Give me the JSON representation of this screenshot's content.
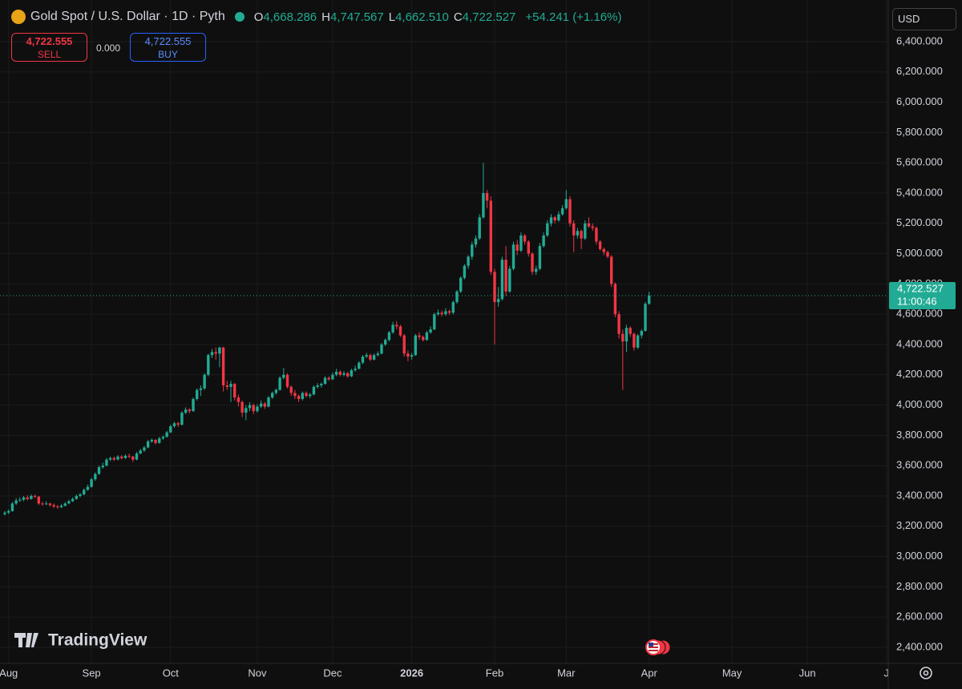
{
  "chart_data": {
    "type": "candlestick",
    "title": "Gold Spot / U.S. Dollar · 1D · Pyth",
    "info": [
      {
        "label": "O",
        "value": "4,668.286"
      },
      {
        "label": "H",
        "value": "4,747.567"
      },
      {
        "label": "L",
        "value": "4,662.510"
      },
      {
        "label": "C",
        "value": "4,722.527"
      }
    ],
    "change": "+54.241 (+1.16%)",
    "trade": {
      "sell_price": "4,722.555",
      "sell": "SELL",
      "spread": "0.000",
      "buy_price": "4,722.555",
      "buy": "BUY"
    },
    "currency": "USD",
    "brand": "TradingView",
    "up_color": "#22ab94",
    "down_color": "#f23645",
    "grid": true,
    "price_line": {
      "value": 4722.527,
      "label": "4,722.527",
      "countdown": "11:00:46"
    },
    "xlim": [
      -1.28,
      234.47
    ],
    "xticks": [
      {
        "value": 1,
        "label": "Aug"
      },
      {
        "value": 23,
        "label": "Sep"
      },
      {
        "value": 44,
        "label": "Oct"
      },
      {
        "value": 67,
        "label": "Nov"
      },
      {
        "value": 87,
        "label": "Dec"
      },
      {
        "value": 108,
        "label": "2026"
      },
      {
        "value": 130,
        "label": "Feb"
      },
      {
        "value": 149,
        "label": "Mar"
      },
      {
        "value": 171,
        "label": "Apr"
      },
      {
        "value": 193,
        "label": "May"
      },
      {
        "value": 213,
        "label": "Jun"
      },
      {
        "value": 234,
        "label": "J"
      }
    ],
    "ylim": [
      2294.2,
      6675.1
    ],
    "yticks": [
      {
        "value": 2400,
        "label": "2,400.000"
      },
      {
        "value": 2600,
        "label": "2,600.000"
      },
      {
        "value": 2800,
        "label": "2,800.000"
      },
      {
        "value": 3000,
        "label": "3,000.000"
      },
      {
        "value": 3200,
        "label": "3,200.000"
      },
      {
        "value": 3400,
        "label": "3,400.000"
      },
      {
        "value": 3600,
        "label": "3,600.000"
      },
      {
        "value": 3800,
        "label": "3,800.000"
      },
      {
        "value": 4000,
        "label": "4,000.000"
      },
      {
        "value": 4200,
        "label": "4,200.000"
      },
      {
        "value": 4400,
        "label": "4,400.000"
      },
      {
        "value": 4600,
        "label": "4,600.000"
      },
      {
        "value": 4800,
        "label": "4,800.000"
      },
      {
        "value": 5000,
        "label": "5,000.000"
      },
      {
        "value": 5200,
        "label": "5,200.000"
      },
      {
        "value": 5400,
        "label": "5,400.000"
      },
      {
        "value": 5600,
        "label": "5,600.000"
      },
      {
        "value": 5800,
        "label": "5,800.000"
      },
      {
        "value": 6000,
        "label": "6,000.000"
      },
      {
        "value": 6200,
        "label": "6,200.000"
      },
      {
        "value": 6400,
        "label": "6,400.000"
      }
    ],
    "ohlc": [
      [
        3280,
        3300,
        3270,
        3290
      ],
      [
        3290,
        3310,
        3280,
        3300
      ],
      [
        3300,
        3360,
        3295,
        3350
      ],
      [
        3350,
        3385,
        3340,
        3370
      ],
      [
        3370,
        3390,
        3360,
        3375
      ],
      [
        3375,
        3400,
        3365,
        3390
      ],
      [
        3390,
        3405,
        3370,
        3380
      ],
      [
        3380,
        3410,
        3375,
        3400
      ],
      [
        3400,
        3410,
        3385,
        3395
      ],
      [
        3395,
        3400,
        3340,
        3350
      ],
      [
        3350,
        3360,
        3335,
        3345
      ],
      [
        3345,
        3365,
        3340,
        3350
      ],
      [
        3350,
        3355,
        3330,
        3340
      ],
      [
        3340,
        3350,
        3320,
        3330
      ],
      [
        3330,
        3340,
        3315,
        3325
      ],
      [
        3325,
        3345,
        3320,
        3335
      ],
      [
        3335,
        3360,
        3330,
        3350
      ],
      [
        3350,
        3375,
        3345,
        3365
      ],
      [
        3365,
        3390,
        3360,
        3380
      ],
      [
        3380,
        3410,
        3375,
        3400
      ],
      [
        3400,
        3420,
        3390,
        3410
      ],
      [
        3410,
        3450,
        3405,
        3440
      ],
      [
        3440,
        3475,
        3435,
        3460
      ],
      [
        3460,
        3520,
        3455,
        3510
      ],
      [
        3510,
        3555,
        3500,
        3545
      ],
      [
        3545,
        3600,
        3540,
        3590
      ],
      [
        3590,
        3620,
        3580,
        3600
      ],
      [
        3600,
        3650,
        3595,
        3640
      ],
      [
        3640,
        3660,
        3630,
        3650
      ],
      [
        3650,
        3660,
        3630,
        3640
      ],
      [
        3640,
        3670,
        3635,
        3660
      ],
      [
        3660,
        3670,
        3640,
        3650
      ],
      [
        3650,
        3675,
        3645,
        3665
      ],
      [
        3665,
        3680,
        3650,
        3660
      ],
      [
        3660,
        3665,
        3625,
        3640
      ],
      [
        3640,
        3690,
        3635,
        3680
      ],
      [
        3680,
        3710,
        3675,
        3700
      ],
      [
        3700,
        3730,
        3690,
        3720
      ],
      [
        3720,
        3770,
        3715,
        3760
      ],
      [
        3760,
        3780,
        3750,
        3770
      ],
      [
        3770,
        3775,
        3740,
        3750
      ],
      [
        3750,
        3790,
        3745,
        3780
      ],
      [
        3780,
        3800,
        3770,
        3790
      ],
      [
        3790,
        3830,
        3785,
        3820
      ],
      [
        3820,
        3870,
        3815,
        3860
      ],
      [
        3860,
        3890,
        3850,
        3880
      ],
      [
        3880,
        3890,
        3855,
        3870
      ],
      [
        3870,
        3960,
        3865,
        3950
      ],
      [
        3950,
        3985,
        3940,
        3970
      ],
      [
        3970,
        3980,
        3945,
        3960
      ],
      [
        3960,
        4050,
        3955,
        4040
      ],
      [
        4040,
        4110,
        4030,
        4100
      ],
      [
        4100,
        4130,
        4060,
        4110
      ],
      [
        4110,
        4210,
        4100,
        4200
      ],
      [
        4200,
        4340,
        4190,
        4330
      ],
      [
        4330,
        4370,
        4310,
        4350
      ],
      [
        4350,
        4380,
        4300,
        4340
      ],
      [
        4340,
        4385,
        4250,
        4380
      ],
      [
        4380,
        4385,
        4090,
        4130
      ],
      [
        4130,
        4160,
        4100,
        4120
      ],
      [
        4120,
        4160,
        4020,
        4140
      ],
      [
        4140,
        4145,
        4030,
        4050
      ],
      [
        4050,
        4070,
        3990,
        4020
      ],
      [
        4020,
        4030,
        3920,
        3950
      ],
      [
        3950,
        4000,
        3900,
        3980
      ],
      [
        3980,
        4020,
        3960,
        4000
      ],
      [
        4000,
        4010,
        3940,
        3960
      ],
      [
        3960,
        4005,
        3950,
        3990
      ],
      [
        3990,
        4030,
        3980,
        4010
      ],
      [
        4010,
        4020,
        3975,
        3990
      ],
      [
        3990,
        4060,
        3985,
        4050
      ],
      [
        4050,
        4090,
        4040,
        4080
      ],
      [
        4080,
        4110,
        4070,
        4100
      ],
      [
        4100,
        4190,
        4095,
        4180
      ],
      [
        4180,
        4245,
        4170,
        4200
      ],
      [
        4200,
        4210,
        4110,
        4120
      ],
      [
        4120,
        4130,
        4060,
        4080
      ],
      [
        4080,
        4100,
        4040,
        4060
      ],
      [
        4060,
        4070,
        4020,
        4040
      ],
      [
        4040,
        4090,
        4030,
        4080
      ],
      [
        4080,
        4090,
        4050,
        4060
      ],
      [
        4060,
        4080,
        4045,
        4070
      ],
      [
        4070,
        4130,
        4065,
        4120
      ],
      [
        4120,
        4145,
        4110,
        4130
      ],
      [
        4130,
        4150,
        4115,
        4140
      ],
      [
        4140,
        4190,
        4135,
        4180
      ],
      [
        4180,
        4190,
        4160,
        4170
      ],
      [
        4170,
        4215,
        4165,
        4200
      ],
      [
        4200,
        4240,
        4190,
        4220
      ],
      [
        4220,
        4230,
        4190,
        4200
      ],
      [
        4200,
        4225,
        4190,
        4210
      ],
      [
        4210,
        4220,
        4180,
        4190
      ],
      [
        4190,
        4240,
        4185,
        4230
      ],
      [
        4230,
        4260,
        4220,
        4240
      ],
      [
        4240,
        4290,
        4235,
        4280
      ],
      [
        4280,
        4330,
        4270,
        4320
      ],
      [
        4320,
        4345,
        4310,
        4330
      ],
      [
        4330,
        4340,
        4290,
        4300
      ],
      [
        4300,
        4340,
        4295,
        4330
      ],
      [
        4330,
        4355,
        4320,
        4340
      ],
      [
        4340,
        4410,
        4335,
        4400
      ],
      [
        4400,
        4440,
        4390,
        4430
      ],
      [
        4430,
        4490,
        4420,
        4480
      ],
      [
        4480,
        4550,
        4470,
        4530
      ],
      [
        4530,
        4555,
        4500,
        4520
      ],
      [
        4520,
        4530,
        4450,
        4460
      ],
      [
        4460,
        4470,
        4320,
        4340
      ],
      [
        4340,
        4360,
        4290,
        4320
      ],
      [
        4320,
        4345,
        4300,
        4330
      ],
      [
        4330,
        4470,
        4325,
        4460
      ],
      [
        4460,
        4480,
        4430,
        4450
      ],
      [
        4450,
        4460,
        4420,
        4430
      ],
      [
        4430,
        4490,
        4425,
        4480
      ],
      [
        4480,
        4520,
        4470,
        4500
      ],
      [
        4500,
        4610,
        4495,
        4600
      ],
      [
        4600,
        4630,
        4590,
        4610
      ],
      [
        4610,
        4625,
        4585,
        4600
      ],
      [
        4600,
        4640,
        4590,
        4620
      ],
      [
        4620,
        4630,
        4595,
        4610
      ],
      [
        4610,
        4690,
        4600,
        4680
      ],
      [
        4680,
        4760,
        4670,
        4750
      ],
      [
        4750,
        4850,
        4740,
        4840
      ],
      [
        4840,
        4930,
        4830,
        4920
      ],
      [
        4920,
        4990,
        4900,
        4980
      ],
      [
        4980,
        5080,
        4960,
        5060
      ],
      [
        5060,
        5120,
        5040,
        5100
      ],
      [
        5100,
        5260,
        5090,
        5240
      ],
      [
        5240,
        5600,
        5230,
        5400
      ],
      [
        5400,
        5420,
        5300,
        5350
      ],
      [
        5350,
        5380,
        4860,
        4880
      ],
      [
        4880,
        4900,
        4400,
        4680
      ],
      [
        4680,
        4780,
        4650,
        4700
      ],
      [
        4700,
        4980,
        4690,
        4960
      ],
      [
        4960,
        5050,
        4720,
        4750
      ],
      [
        4750,
        4920,
        4740,
        4900
      ],
      [
        4900,
        5080,
        4890,
        5060
      ],
      [
        5060,
        5090,
        4990,
        5020
      ],
      [
        5020,
        5140,
        5010,
        5120
      ],
      [
        5120,
        5130,
        5060,
        5080
      ],
      [
        5080,
        5090,
        4980,
        5000
      ],
      [
        5000,
        5010,
        4860,
        4880
      ],
      [
        4880,
        4920,
        4860,
        4900
      ],
      [
        4900,
        5070,
        4890,
        5050
      ],
      [
        5050,
        5140,
        5040,
        5120
      ],
      [
        5120,
        5220,
        5110,
        5200
      ],
      [
        5200,
        5260,
        5180,
        5240
      ],
      [
        5240,
        5250,
        5200,
        5220
      ],
      [
        5220,
        5280,
        5210,
        5260
      ],
      [
        5260,
        5320,
        5250,
        5300
      ],
      [
        5300,
        5420,
        5290,
        5360
      ],
      [
        5360,
        5380,
        5180,
        5200
      ],
      [
        5200,
        5220,
        5010,
        5120
      ],
      [
        5120,
        5170,
        5100,
        5150
      ],
      [
        5150,
        5160,
        5030,
        5100
      ],
      [
        5100,
        5220,
        5090,
        5200
      ],
      [
        5200,
        5240,
        5170,
        5180
      ],
      [
        5180,
        5200,
        5150,
        5170
      ],
      [
        5170,
        5180,
        5060,
        5080
      ],
      [
        5080,
        5090,
        5020,
        5030
      ],
      [
        5030,
        5040,
        4990,
        5010
      ],
      [
        5010,
        5020,
        4970,
        4980
      ],
      [
        4980,
        4990,
        4780,
        4800
      ],
      [
        4800,
        4810,
        4580,
        4600
      ],
      [
        4600,
        4620,
        4440,
        4470
      ],
      [
        4470,
        4500,
        4100,
        4420
      ],
      [
        4420,
        4530,
        4350,
        4510
      ],
      [
        4510,
        4520,
        4450,
        4470
      ],
      [
        4470,
        4480,
        4360,
        4380
      ],
      [
        4380,
        4470,
        4370,
        4460
      ],
      [
        4460,
        4500,
        4440,
        4490
      ],
      [
        4490,
        4680,
        4485,
        4668.286
      ],
      [
        4668.286,
        4747.567,
        4662.51,
        4722.527
      ]
    ]
  }
}
